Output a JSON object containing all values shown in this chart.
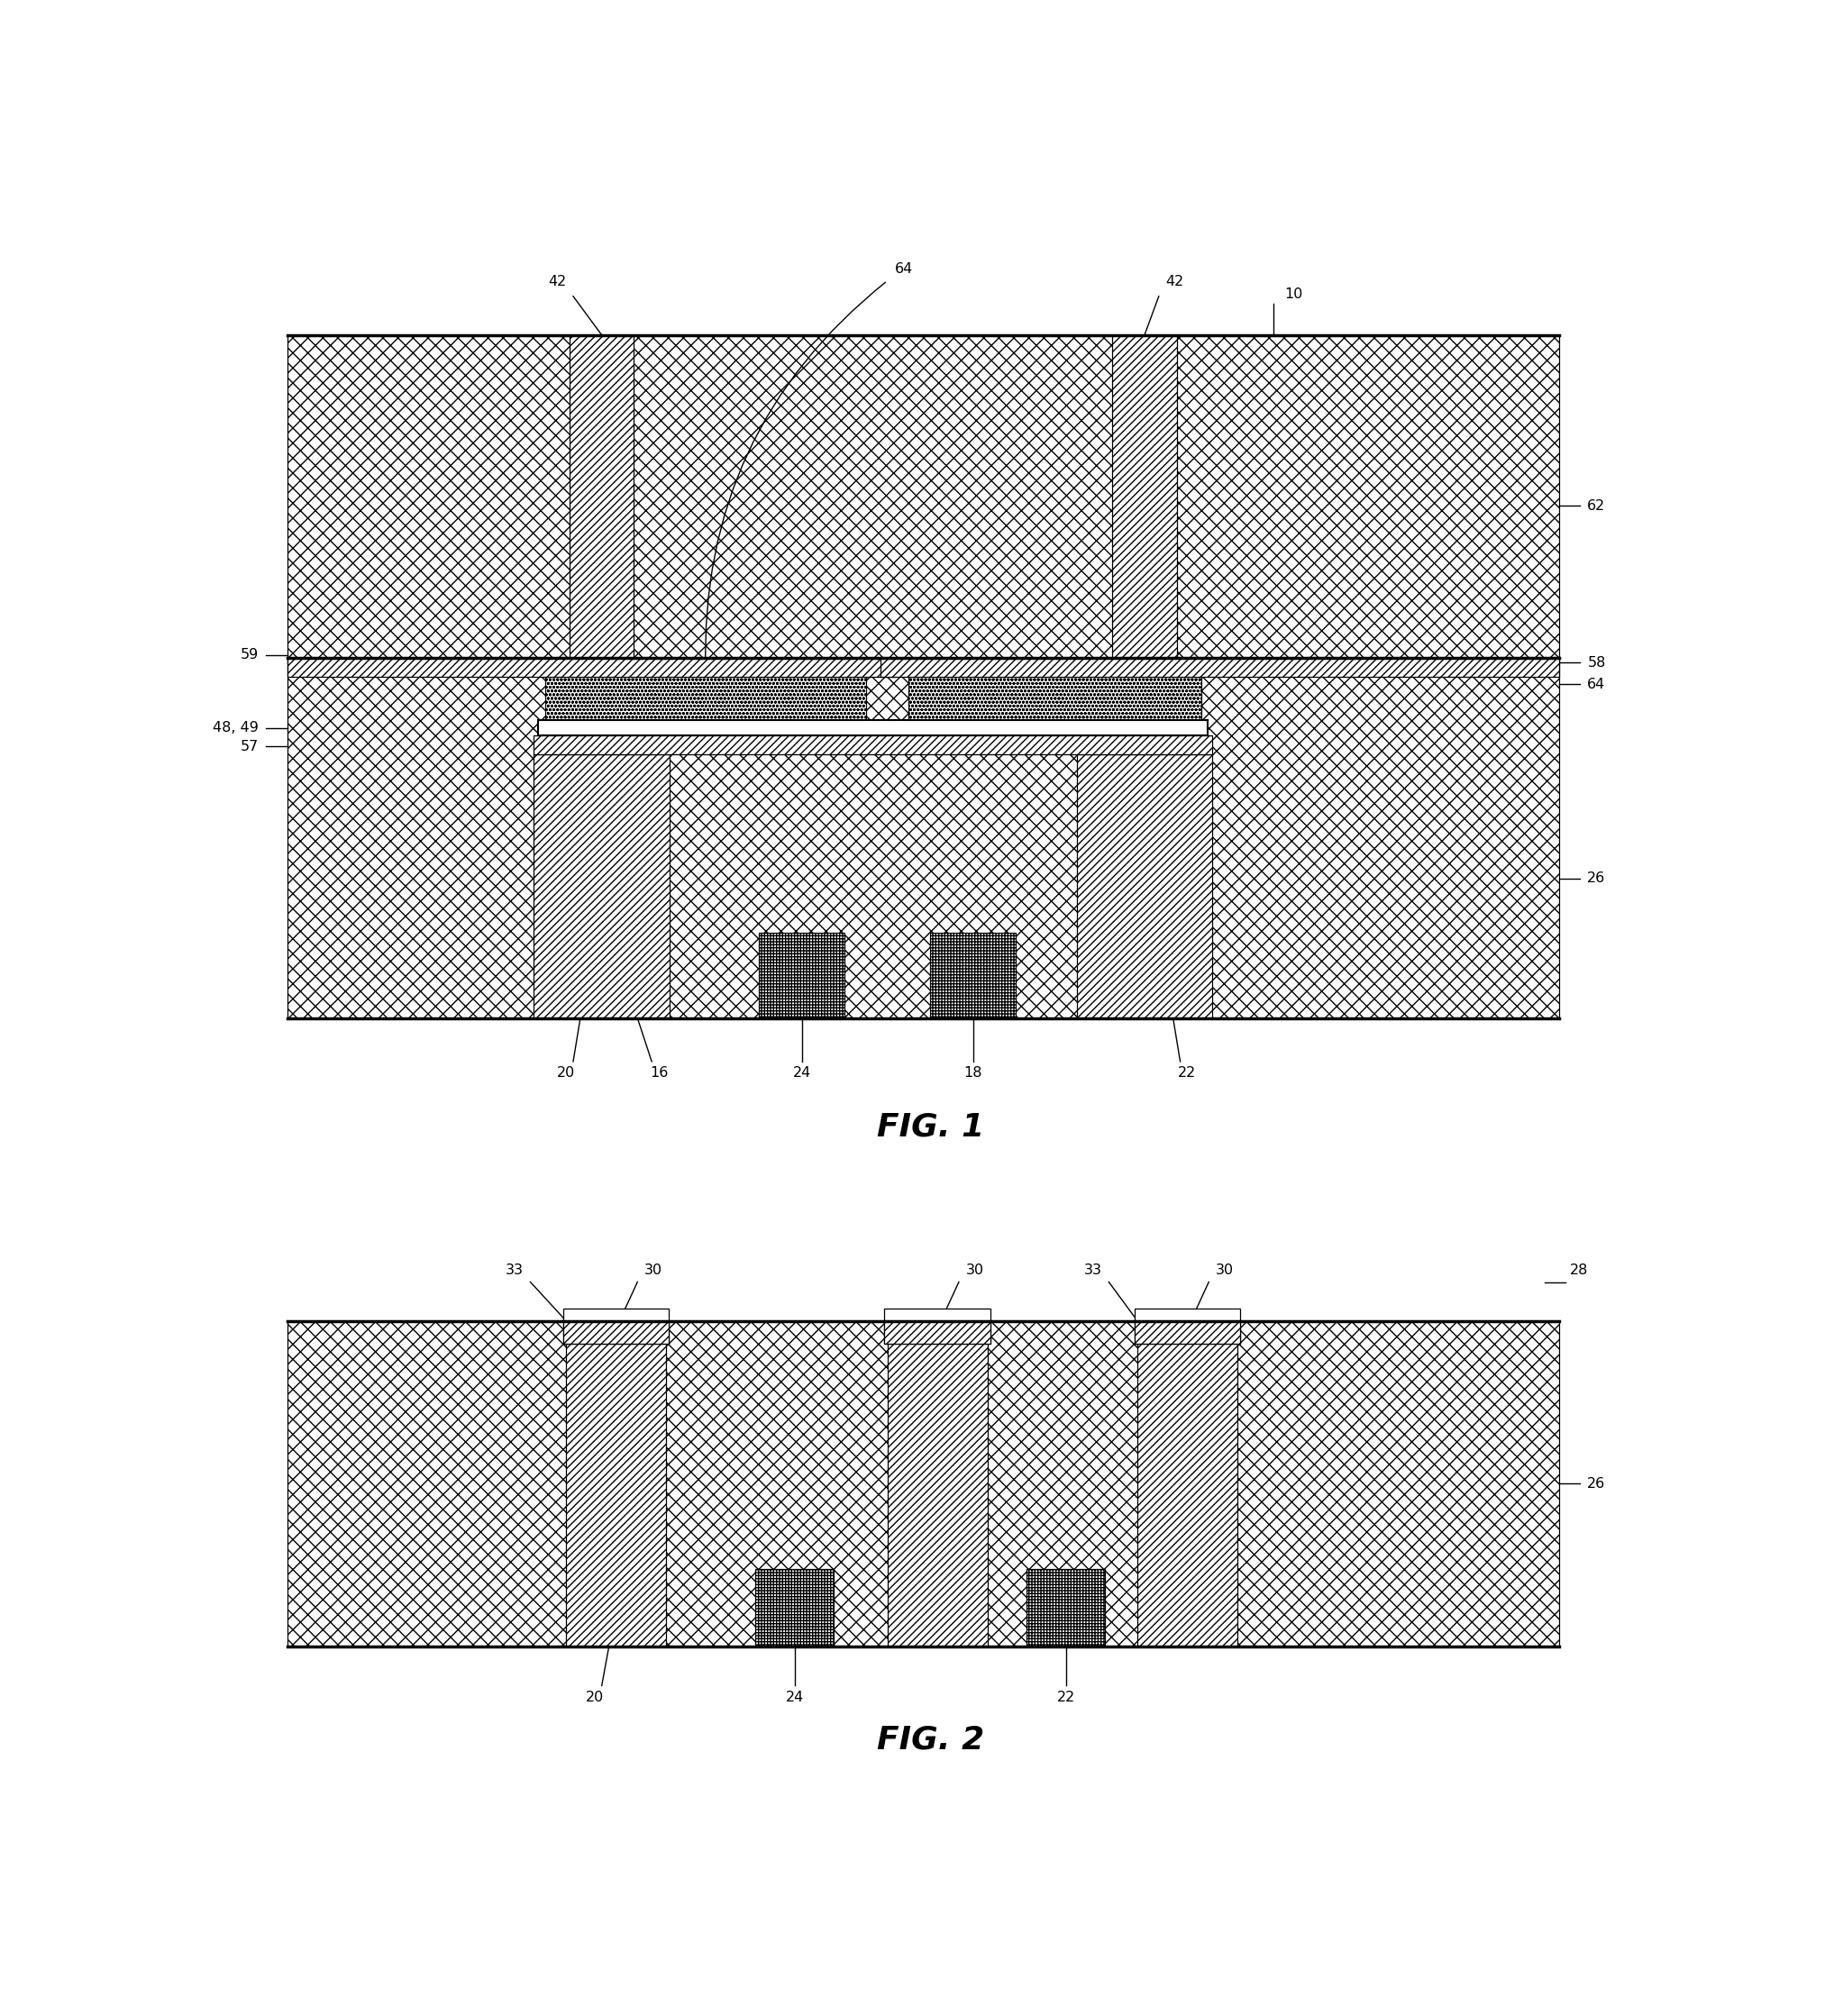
{
  "fig_width": 20.45,
  "fig_height": 22.37,
  "fig1_title": "FIG. 1",
  "fig2_title": "FIG. 2",
  "label_10": "10",
  "label_62": "62",
  "label_59": "59",
  "label_64": "64",
  "label_58": "58",
  "label_48_49": "48, 49",
  "label_57": "57",
  "label_42": "42",
  "label_26": "26",
  "label_20": "20",
  "label_16": "16",
  "label_24": "24",
  "label_18": "18",
  "label_22": "22",
  "label_33": "33",
  "label_30": "30",
  "label_28": "28"
}
